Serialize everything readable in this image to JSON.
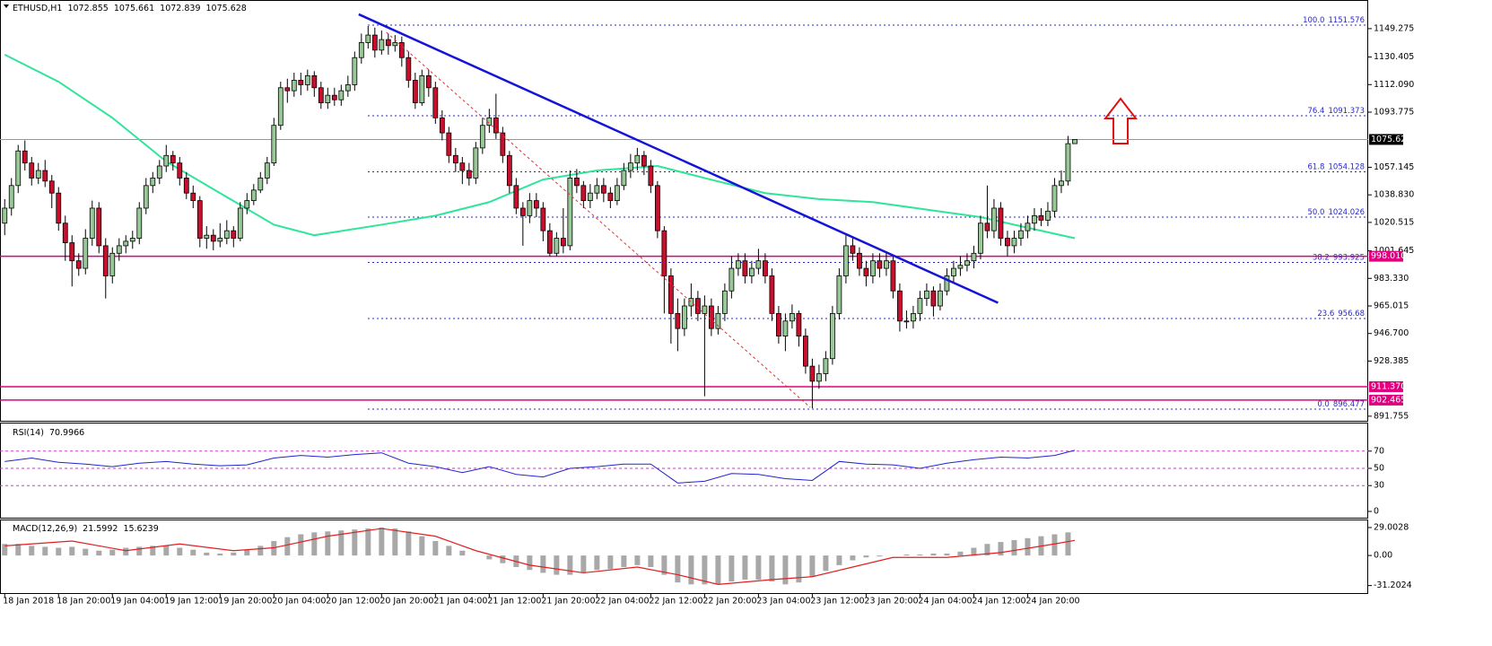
{
  "chart_data": [
    {
      "type": "candlestick",
      "title": "ETHUSD,H1",
      "header_values": [
        1072.855,
        1075.661,
        1072.839,
        1075.628
      ],
      "up_color": "#98c898",
      "down_color": "#c8102e",
      "open": [
        1020,
        1030,
        1045,
        1068,
        1060,
        1050,
        1055,
        1048,
        1040,
        1020,
        1007,
        995,
        990,
        1010,
        1030,
        1005,
        985,
        1000,
        1005,
        1008,
        1010,
        1030,
        1045,
        1050,
        1058,
        1065,
        1060,
        1050,
        1040,
        1035,
        1010,
        1012,
        1008,
        1010,
        1015,
        1010,
        1030,
        1035,
        1042,
        1050,
        1060,
        1085,
        1110,
        1108,
        1115,
        1112,
        1118,
        1110,
        1100,
        1105,
        1102,
        1108,
        1112,
        1130,
        1140,
        1145,
        1135,
        1142,
        1138,
        1140,
        1130,
        1115,
        1100,
        1118,
        1110,
        1090,
        1080,
        1065,
        1060,
        1055,
        1050,
        1070,
        1085,
        1090,
        1080,
        1065,
        1045,
        1030,
        1025,
        1035,
        1030,
        1015,
        1000,
        1010,
        1005,
        1050,
        1045,
        1035,
        1040,
        1045,
        1040,
        1035,
        1045,
        1055,
        1060,
        1065,
        1058,
        1045,
        1015,
        985,
        960,
        950,
        965,
        970,
        960,
        965,
        950,
        960,
        975,
        990,
        995,
        985,
        990,
        995,
        985,
        960,
        945,
        955,
        960,
        945,
        925,
        915,
        920,
        930,
        960,
        985,
        1005,
        1000,
        990,
        985,
        995,
        990,
        995,
        975,
        955,
        955,
        960,
        970,
        975,
        965,
        975,
        985,
        990,
        992,
        995,
        1000,
        1020,
        1015,
        1030,
        1010,
        1005,
        1010,
        1015,
        1020,
        1025,
        1022,
        1028,
        1045,
        1048,
        1072.855
      ],
      "high": [
        1036,
        1050,
        1072,
        1075,
        1064,
        1060,
        1062,
        1052,
        1044,
        1025,
        1012,
        1000,
        1016,
        1035,
        1034,
        1010,
        1004,
        1010,
        1012,
        1015,
        1034,
        1050,
        1054,
        1062,
        1072,
        1068,
        1064,
        1054,
        1045,
        1038,
        1018,
        1016,
        1020,
        1022,
        1018,
        1034,
        1040,
        1046,
        1054,
        1064,
        1090,
        1114,
        1116,
        1120,
        1120,
        1122,
        1121,
        1114,
        1110,
        1110,
        1112,
        1118,
        1134,
        1146,
        1151,
        1150,
        1148,
        1146,
        1145,
        1144,
        1134,
        1120,
        1122,
        1122,
        1114,
        1095,
        1084,
        1070,
        1064,
        1060,
        1074,
        1090,
        1096,
        1106,
        1084,
        1068,
        1050,
        1034,
        1040,
        1040,
        1034,
        1020,
        1014,
        1030,
        1055,
        1056,
        1048,
        1046,
        1050,
        1050,
        1044,
        1050,
        1060,
        1066,
        1070,
        1068,
        1062,
        1048,
        1018,
        990,
        970,
        970,
        980,
        975,
        972,
        970,
        965,
        980,
        998,
        1000,
        1000,
        995,
        1003,
        1000,
        990,
        965,
        960,
        966,
        962,
        950,
        930,
        926,
        935,
        965,
        990,
        1012,
        1010,
        1004,
        995,
        1000,
        1000,
        1000,
        998,
        980,
        962,
        965,
        975,
        980,
        978,
        980,
        990,
        995,
        998,
        1000,
        1005,
        1025,
        1045,
        1036,
        1034,
        1015,
        1015,
        1020,
        1025,
        1030,
        1030,
        1034,
        1050,
        1055,
        1078,
        1075.661
      ],
      "low": [
        1012,
        1025,
        1040,
        1055,
        1045,
        1046,
        1044,
        1030,
        1015,
        995,
        978,
        985,
        986,
        1005,
        1000,
        970,
        980,
        995,
        1000,
        1003,
        1006,
        1026,
        1040,
        1046,
        1054,
        1055,
        1045,
        1036,
        1030,
        1004,
        1003,
        1002,
        1004,
        1006,
        1004,
        1008,
        1026,
        1032,
        1040,
        1046,
        1058,
        1082,
        1100,
        1104,
        1105,
        1108,
        1104,
        1096,
        1096,
        1098,
        1098,
        1104,
        1108,
        1126,
        1136,
        1130,
        1132,
        1132,
        1134,
        1124,
        1110,
        1096,
        1098,
        1104,
        1086,
        1075,
        1060,
        1054,
        1046,
        1045,
        1046,
        1066,
        1080,
        1076,
        1060,
        1040,
        1026,
        1005,
        1020,
        1024,
        1008,
        998,
        998,
        1000,
        1002,
        1040,
        1030,
        1030,
        1036,
        1034,
        1030,
        1032,
        1042,
        1050,
        1055,
        1052,
        1040,
        1010,
        960,
        940,
        935,
        945,
        958,
        955,
        905,
        945,
        946,
        955,
        970,
        985,
        980,
        980,
        986,
        980,
        955,
        940,
        935,
        950,
        938,
        920,
        897,
        910,
        915,
        926,
        956,
        980,
        995,
        985,
        978,
        980,
        984,
        985,
        970,
        948,
        950,
        950,
        955,
        965,
        958,
        962,
        972,
        980,
        985,
        988,
        990,
        996,
        1010,
        1010,
        1005,
        998,
        1000,
        1005,
        1010,
        1015,
        1018,
        1018,
        1024,
        1040,
        1045,
        1072.839
      ],
      "close": [
        1030,
        1045,
        1068,
        1060,
        1050,
        1055,
        1048,
        1040,
        1020,
        1007,
        995,
        990,
        1010,
        1030,
        1005,
        985,
        1000,
        1005,
        1008,
        1010,
        1030,
        1045,
        1050,
        1058,
        1065,
        1060,
        1050,
        1040,
        1035,
        1010,
        1012,
        1008,
        1010,
        1015,
        1010,
        1030,
        1035,
        1042,
        1050,
        1060,
        1085,
        1110,
        1108,
        1115,
        1112,
        1118,
        1110,
        1100,
        1105,
        1102,
        1108,
        1112,
        1130,
        1140,
        1145,
        1135,
        1142,
        1138,
        1140,
        1130,
        1115,
        1100,
        1118,
        1110,
        1090,
        1080,
        1065,
        1060,
        1055,
        1050,
        1070,
        1085,
        1090,
        1080,
        1065,
        1045,
        1030,
        1025,
        1035,
        1030,
        1015,
        1000,
        1010,
        1005,
        1050,
        1045,
        1035,
        1040,
        1045,
        1040,
        1035,
        1045,
        1055,
        1060,
        1065,
        1058,
        1045,
        1015,
        985,
        960,
        950,
        965,
        970,
        960,
        965,
        950,
        960,
        975,
        990,
        995,
        985,
        990,
        995,
        985,
        960,
        945,
        955,
        960,
        945,
        925,
        915,
        920,
        930,
        960,
        985,
        1005,
        1000,
        990,
        985,
        995,
        990,
        995,
        975,
        955,
        955,
        960,
        970,
        975,
        965,
        975,
        985,
        990,
        992,
        995,
        1000,
        1020,
        1015,
        1030,
        1010,
        1005,
        1010,
        1015,
        1020,
        1025,
        1022,
        1028,
        1045,
        1048,
        1072.855,
        1075.628
      ],
      "xlim": [
        -0.7,
        202.6
      ],
      "xticks": [
        {
          "value": 0,
          "label": "18 Jan 2018"
        },
        {
          "value": 8,
          "label": "18 Jan 20:00"
        },
        {
          "value": 16,
          "label": "19 Jan 04:00"
        },
        {
          "value": 24,
          "label": "19 Jan 12:00"
        },
        {
          "value": 32,
          "label": "19 Jan 20:00"
        },
        {
          "value": 40,
          "label": "20 Jan 04:00"
        },
        {
          "value": 48,
          "label": "20 Jan 12:00"
        },
        {
          "value": 56,
          "label": "20 Jan 20:00"
        },
        {
          "value": 64,
          "label": "21 Jan 04:00"
        },
        {
          "value": 72,
          "label": "21 Jan 12:00"
        },
        {
          "value": 80,
          "label": "21 Jan 20:00"
        },
        {
          "value": 88,
          "label": "22 Jan 04:00"
        },
        {
          "value": 96,
          "label": "22 Jan 12:00"
        },
        {
          "value": 104,
          "label": "22 Jan 20:00"
        },
        {
          "value": 112,
          "label": "23 Jan 04:00"
        },
        {
          "value": 120,
          "label": "23 Jan 12:00"
        },
        {
          "value": 128,
          "label": "23 Jan 20:00"
        },
        {
          "value": 136,
          "label": "24 Jan 04:00"
        },
        {
          "value": 144,
          "label": "24 Jan 12:00"
        },
        {
          "value": 152,
          "label": "24 Jan 20:00"
        }
      ],
      "ylim": [
        888.7,
        1167.7
      ],
      "yticks": [
        1149.275,
        1130.405,
        {
          "value": 1112.09,
          "label": "1112.090"
        },
        1093.775,
        1057.145,
        {
          "value": 1038.83,
          "label": "1038.830"
        },
        1020.515,
        1001.645,
        {
          "value": 983.33,
          "label": "983.330"
        },
        965.015,
        {
          "value": 946.7,
          "label": "946.700"
        },
        928.385,
        891.755
      ],
      "current_price": 1075.628,
      "moving_average": {
        "color": "#2ee59a",
        "x": [
          0,
          8,
          16,
          24,
          32,
          40,
          46,
          56,
          64,
          72,
          80,
          88,
          97,
          104,
          113,
          121,
          129,
          137,
          145,
          153,
          159
        ],
        "values": [
          1132,
          1114,
          1090,
          1061,
          1040,
          1019,
          1012,
          1019,
          1025,
          1034,
          1049,
          1055,
          1058,
          1050,
          1040,
          1036,
          1034,
          1029,
          1024,
          1016,
          1010
        ]
      },
      "trendline": {
        "color": "#1414d8",
        "x": [
          52.6,
          147.6
        ],
        "values": [
          1158.8,
          967.1
        ]
      },
      "projection": {
        "color": "#e03030",
        "x": [
          56.7,
          119.7
        ],
        "values": [
          1146.9,
          897.6
        ]
      },
      "fib_color": "#2828c8",
      "fibonacci": [
        {
          "ratio": "100.0",
          "price": 1151.576
        },
        {
          "ratio": "76.4",
          "price": 1091.373
        },
        {
          "ratio": "61.8",
          "price": 1054.128
        },
        {
          "ratio": "50.0",
          "price": 1024.026
        },
        {
          "ratio": "38.2",
          "price": 993.925
        },
        {
          "ratio": "23.6",
          "price": 956.68
        },
        {
          "ratio": "0.0",
          "price": 896.477
        }
      ],
      "level_color": "#e0007f",
      "levels": [
        {
          "value": 998.01,
          "label": "998.010"
        },
        {
          "value": 911.37,
          "label": "911.370"
        },
        {
          "value": 902.465,
          "label": "902.465"
        }
      ]
    },
    {
      "type": "line",
      "title": "RSI(14)",
      "header_values": [
        70.9966
      ],
      "color": "#2323d0",
      "x": [
        0,
        4,
        8,
        12,
        16,
        20,
        24,
        28,
        32,
        36,
        40,
        44,
        48,
        52,
        56,
        60,
        64,
        68,
        72,
        76,
        80,
        84,
        88,
        92,
        96,
        100,
        104,
        108,
        112,
        116,
        120,
        124,
        128,
        132,
        136,
        140,
        144,
        148,
        152,
        156,
        159
      ],
      "values": [
        58,
        62,
        57,
        55,
        52,
        56,
        58,
        55,
        53,
        54,
        62,
        65,
        63,
        66,
        68,
        56,
        52,
        45,
        52,
        43,
        40,
        50,
        52,
        55,
        55,
        33,
        35,
        44,
        43,
        38,
        36,
        58,
        55,
        54,
        50,
        56,
        60,
        63,
        62,
        65,
        70.9966
      ],
      "ylim": [
        0,
        100
      ],
      "yticks": [
        70,
        50,
        30,
        0
      ]
    },
    {
      "type": "macd",
      "title": "MACD(12,26,9)",
      "header_values": [
        21.5992,
        15.6239
      ],
      "histogram": {
        "color": "#a8a8a8",
        "x": [
          0,
          2,
          4,
          6,
          8,
          10,
          12,
          14,
          16,
          18,
          20,
          22,
          24,
          26,
          28,
          30,
          32,
          34,
          36,
          38,
          40,
          42,
          44,
          46,
          48,
          50,
          52,
          54,
          56,
          58,
          60,
          62,
          64,
          66,
          68,
          70,
          72,
          74,
          76,
          78,
          80,
          82,
          84,
          86,
          88,
          90,
          92,
          94,
          96,
          98,
          100,
          102,
          104,
          106,
          108,
          110,
          112,
          114,
          116,
          118,
          120,
          122,
          124,
          126,
          128,
          130,
          132,
          134,
          136,
          138,
          140,
          142,
          144,
          146,
          148,
          150,
          152,
          154,
          156,
          158
        ],
        "values": [
          12,
          12,
          10,
          9,
          8,
          9,
          7,
          5,
          6,
          8,
          9,
          10,
          10,
          8,
          6,
          3,
          2,
          3,
          6,
          10,
          15,
          19,
          22,
          24,
          25,
          26,
          27,
          28,
          29,
          28,
          25,
          20,
          15,
          10,
          5,
          0,
          -4,
          -8,
          -12,
          -15,
          -18,
          -20,
          -20,
          -18,
          -15,
          -14,
          -12,
          -10,
          -12,
          -20,
          -28,
          -30,
          -30,
          -30,
          -27,
          -25,
          -25,
          -27,
          -30,
          -28,
          -22,
          -16,
          -10,
          -5,
          -2,
          -1,
          0,
          1,
          1,
          2,
          2,
          4,
          8,
          12,
          14,
          16,
          18,
          20,
          22,
          24
        ]
      },
      "signal": {
        "color": "#e02020",
        "x": [
          0,
          10,
          18,
          26,
          34,
          40,
          48,
          56,
          64,
          70,
          78,
          86,
          94,
          100,
          106,
          114,
          120,
          126,
          132,
          140,
          148,
          156,
          159
        ],
        "values": [
          10,
          15,
          5,
          12,
          5,
          8,
          20,
          28,
          20,
          5,
          -10,
          -18,
          -12,
          -20,
          -30,
          -25,
          -22,
          -12,
          -2,
          -2,
          3,
          12,
          15.6239
        ]
      },
      "ylim": [
        -39,
        35.5
      ],
      "yticks": [
        29.0028,
        {
          "value": 0,
          "label": "0.00"
        },
        -31.2024
      ]
    }
  ]
}
